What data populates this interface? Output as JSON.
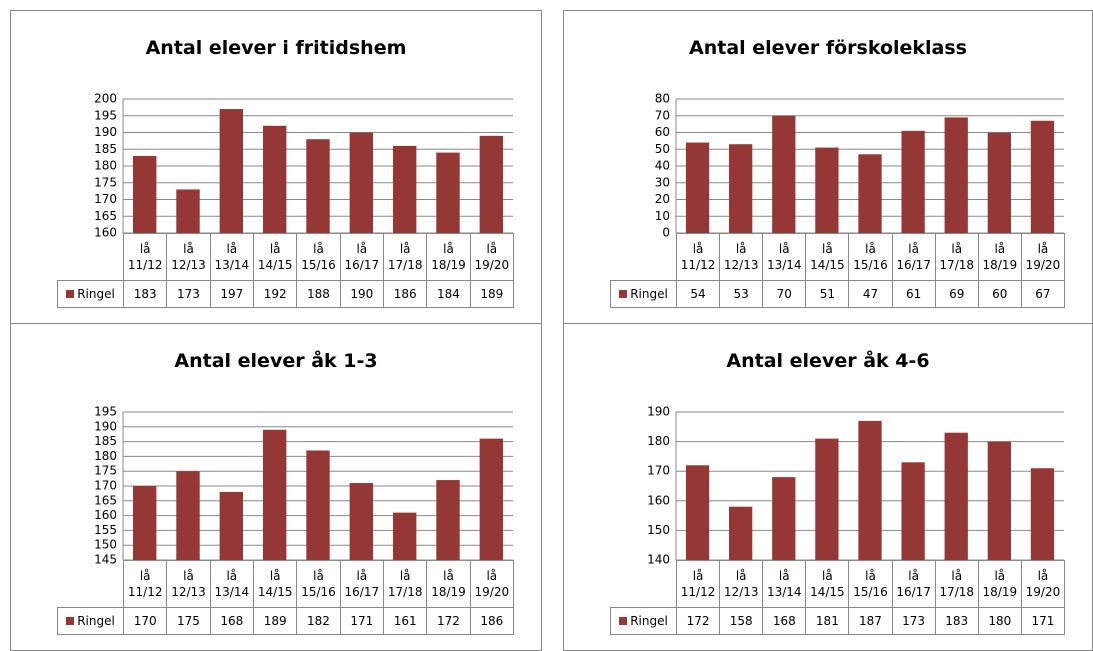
{
  "chart_data": [
    {
      "type": "bar",
      "title": "Antal elever i fritidshem",
      "categories": [
        "lå 11/12",
        "lå 12/13",
        "lå 13/14",
        "lå 14/15",
        "lå 15/16",
        "lå 16/17",
        "lå 17/18",
        "lå 18/19",
        "lå 19/20"
      ],
      "series": [
        {
          "name": "Ringel",
          "color": "#953735",
          "values": [
            183,
            173,
            197,
            192,
            188,
            190,
            186,
            184,
            189
          ]
        }
      ],
      "ylim": [
        160,
        200
      ],
      "yticks": [
        160,
        165,
        170,
        175,
        180,
        185,
        190,
        195,
        200
      ],
      "grid": true
    },
    {
      "type": "bar",
      "title": "Antal elever förskoleklass",
      "categories": [
        "lå 11/12",
        "lå 12/13",
        "lå 13/14",
        "lå 14/15",
        "lå 15/16",
        "lå 16/17",
        "lå 17/18",
        "lå 18/19",
        "lå 19/20"
      ],
      "series": [
        {
          "name": "Ringel",
          "color": "#953735",
          "values": [
            54,
            53,
            70,
            51,
            47,
            61,
            69,
            60,
            67
          ]
        }
      ],
      "ylim": [
        0,
        80
      ],
      "yticks": [
        0,
        10,
        20,
        30,
        40,
        50,
        60,
        70,
        80
      ],
      "grid": true
    },
    {
      "type": "bar",
      "title": "Antal elever åk 1-3",
      "categories": [
        "lå 11/12",
        "lå 12/13",
        "lå 13/14",
        "lå 14/15",
        "lå 15/16",
        "lå 16/17",
        "lå 17/18",
        "lå 18/19",
        "lå 19/20"
      ],
      "series": [
        {
          "name": "Ringel",
          "color": "#953735",
          "values": [
            170,
            175,
            168,
            189,
            182,
            171,
            161,
            172,
            186
          ]
        }
      ],
      "ylim": [
        145,
        195
      ],
      "yticks": [
        145,
        150,
        155,
        160,
        165,
        170,
        175,
        180,
        185,
        190,
        195
      ],
      "grid": true
    },
    {
      "type": "bar",
      "title": "Antal elever åk 4-6",
      "categories": [
        "lå 11/12",
        "lå 12/13",
        "lå 13/14",
        "lå 14/15",
        "lå 15/16",
        "lå 16/17",
        "lå 17/18",
        "lå 18/19",
        "lå 19/20"
      ],
      "series": [
        {
          "name": "Ringel",
          "color": "#953735",
          "values": [
            172,
            158,
            168,
            181,
            187,
            173,
            183,
            180,
            171
          ]
        }
      ],
      "ylim": [
        140,
        190
      ],
      "yticks": [
        140,
        150,
        160,
        170,
        180,
        190
      ],
      "grid": true
    }
  ]
}
